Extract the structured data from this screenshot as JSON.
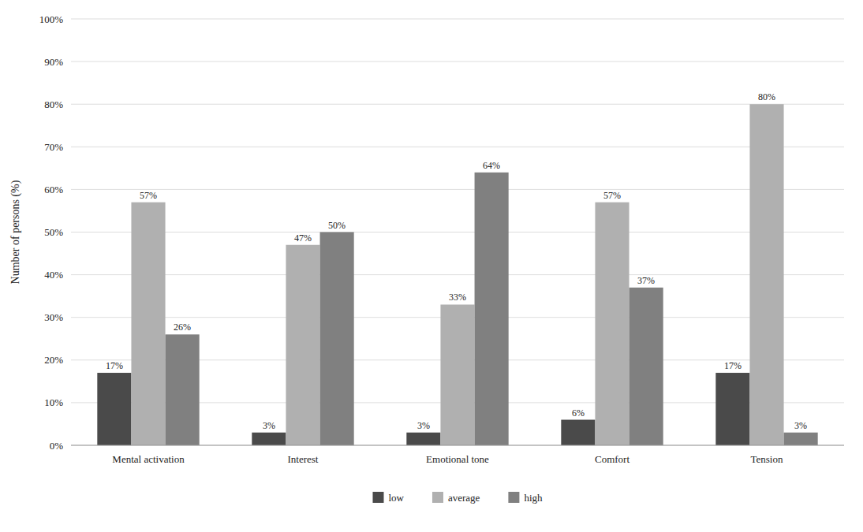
{
  "chart_data": {
    "type": "bar",
    "categories": [
      "Mental activation",
      "Interest",
      "Emotional tone",
      "Comfort",
      "Tension"
    ],
    "series": [
      {
        "name": "low",
        "color": "#4a4a4a",
        "values": [
          17,
          3,
          3,
          6,
          17
        ],
        "value_labels": [
          "17%",
          "3%",
          "3%",
          "6%",
          "17%"
        ]
      },
      {
        "name": "average",
        "color": "#b0b0b0",
        "values": [
          57,
          47,
          33,
          57,
          80
        ],
        "value_labels": [
          "57%",
          "47%",
          "33%",
          "57%",
          "80%"
        ]
      },
      {
        "name": "high",
        "color": "#808080",
        "values": [
          26,
          50,
          64,
          37,
          3
        ],
        "value_labels": [
          "26%",
          "50%",
          "64%",
          "37%",
          "3%"
        ]
      }
    ],
    "y_label": "Number of persons (%)",
    "ylim": [
      0,
      100
    ],
    "yticks": [
      {
        "value": 0,
        "label": "0%"
      },
      {
        "value": 10,
        "label": "10%"
      },
      {
        "value": 20,
        "label": "20%"
      },
      {
        "value": 30,
        "label": "30%"
      },
      {
        "value": 40,
        "label": "40%"
      },
      {
        "value": 50,
        "label": "50%"
      },
      {
        "value": 60,
        "label": "60%"
      },
      {
        "value": 70,
        "label": "70%"
      },
      {
        "value": 80,
        "label": "80%"
      },
      {
        "value": 90,
        "label": "90%"
      },
      {
        "value": 100,
        "label": "100%"
      }
    ],
    "grid": true,
    "legend": "bottom",
    "data_labels": true
  }
}
